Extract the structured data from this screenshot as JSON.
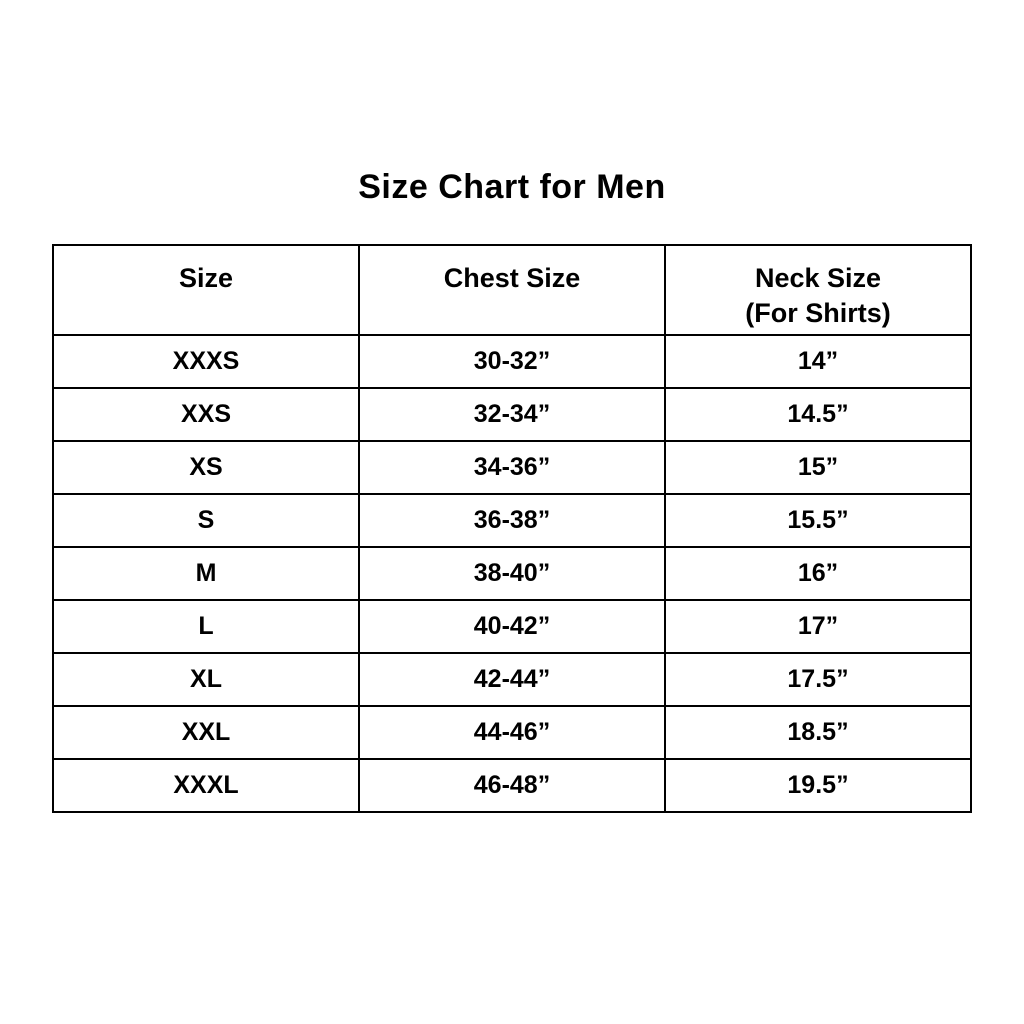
{
  "title": "Size Chart for Men",
  "table": {
    "headers": [
      {
        "line1": "Size",
        "line2": ""
      },
      {
        "line1": "Chest Size",
        "line2": ""
      },
      {
        "line1": "Neck Size",
        "line2": "(For Shirts)"
      }
    ],
    "rows": [
      [
        "XXXS",
        "30-32”",
        "14”"
      ],
      [
        "XXS",
        "32-34”",
        "14.5”"
      ],
      [
        "XS",
        "34-36”",
        "15”"
      ],
      [
        "S",
        "36-38”",
        "15.5”"
      ],
      [
        "M",
        "38-40”",
        "16”"
      ],
      [
        "L",
        "40-42”",
        "17”"
      ],
      [
        "XL",
        "42-44”",
        "17.5”"
      ],
      [
        "XXL",
        "44-46”",
        "18.5”"
      ],
      [
        "XXXL",
        "46-48”",
        "19.5”"
      ]
    ]
  },
  "chart_data": {
    "type": "table",
    "title": "Size Chart for Men",
    "columns": [
      "Size",
      "Chest Size",
      "Neck Size (For Shirts)"
    ],
    "rows": [
      [
        "XXXS",
        "30-32\"",
        "14\""
      ],
      [
        "XXS",
        "32-34\"",
        "14.5\""
      ],
      [
        "XS",
        "34-36\"",
        "15\""
      ],
      [
        "S",
        "36-38\"",
        "15.5\""
      ],
      [
        "M",
        "38-40\"",
        "16\""
      ],
      [
        "L",
        "40-42\"",
        "17\""
      ],
      [
        "XL",
        "42-44\"",
        "17.5\""
      ],
      [
        "XXL",
        "44-46\"",
        "18.5\""
      ],
      [
        "XXXL",
        "46-48\"",
        "19.5\""
      ]
    ],
    "layout": {
      "grid": true,
      "border_color": "#000000",
      "background": "#ffffff",
      "text_color": "#000000"
    }
  },
  "colors": {
    "background": "#ffffff",
    "border": "#000000",
    "text": "#000000"
  }
}
